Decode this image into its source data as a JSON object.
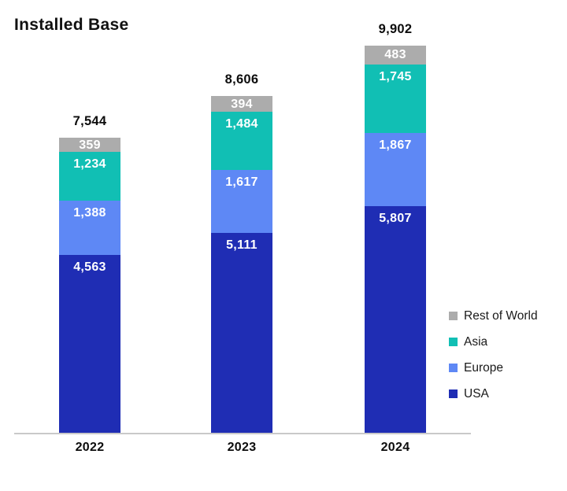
{
  "title": "Installed Base",
  "colors": {
    "usa": "#1F2DB4",
    "europe": "#5E88F5",
    "asia": "#11BFB4",
    "rest_of_world": "#ACACAC",
    "axis_line": "#C9C9C9",
    "segment_label_text": "#FFFFFF",
    "text": "#111111"
  },
  "chart_data": {
    "type": "bar",
    "stacked": true,
    "title": "Installed Base",
    "categories": [
      "2022",
      "2023",
      "2024"
    ],
    "series": [
      {
        "name": "USA",
        "color": "#1F2DB4",
        "values": [
          4563,
          5111,
          5807
        ],
        "labels": [
          "4,563",
          "5,111",
          "5,807"
        ]
      },
      {
        "name": "Europe",
        "color": "#5E88F5",
        "values": [
          1388,
          1617,
          1867
        ],
        "labels": [
          "1,388",
          "1,617",
          "1,867"
        ]
      },
      {
        "name": "Asia",
        "color": "#11BFB4",
        "values": [
          1234,
          1484,
          1745
        ],
        "labels": [
          "1,234",
          "1,484",
          "1,745"
        ]
      },
      {
        "name": "Rest of World",
        "color": "#ACACAC",
        "values": [
          359,
          394,
          483
        ],
        "labels": [
          "359",
          "394",
          "483"
        ]
      }
    ],
    "totals": [
      7544,
      8606,
      9902
    ],
    "totals_labels": [
      "7,544",
      "8,606",
      "9,902"
    ],
    "legend_order": [
      "Rest of World",
      "Asia",
      "Europe",
      "USA"
    ],
    "legend_position": "right",
    "value_label_position": "inside-end",
    "grid": false,
    "xlabel": "",
    "ylabel": ""
  }
}
